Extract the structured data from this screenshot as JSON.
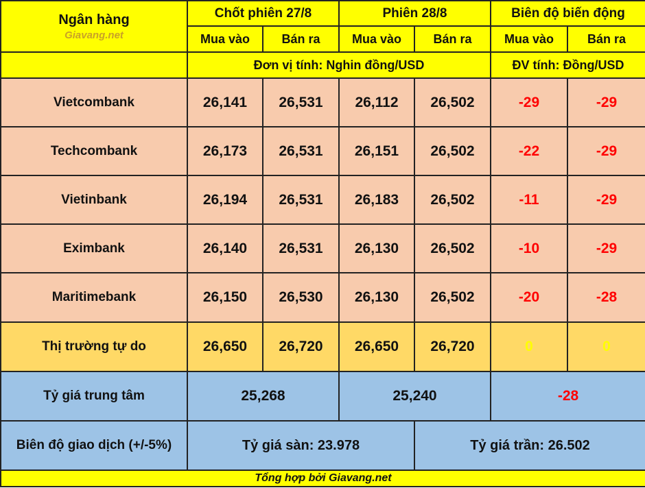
{
  "header": {
    "bank_label": "Ngân hàng",
    "brand": "Giavang.net",
    "period1": "Chốt phiên 27/8",
    "period2": "Phiên 28/8",
    "change": "Biên độ biến động",
    "buy": "Mua vào",
    "sell": "Bán ra",
    "unit1": "Đơn vị tính: Nghin đồng/USD",
    "unit2": "ĐV tính: Đồng/USD"
  },
  "rows": [
    {
      "bank": "Vietcombank",
      "buy1": "26,141",
      "sell1": "26,531",
      "buy2": "26,112",
      "sell2": "26,502",
      "dbuy": "-29",
      "dsell": "-29"
    },
    {
      "bank": "Techcombank",
      "buy1": "26,173",
      "sell1": "26,531",
      "buy2": "26,151",
      "sell2": "26,502",
      "dbuy": "-22",
      "dsell": "-29"
    },
    {
      "bank": "Vietinbank",
      "buy1": "26,194",
      "sell1": "26,531",
      "buy2": "26,183",
      "sell2": "26,502",
      "dbuy": "-11",
      "dsell": "-29"
    },
    {
      "bank": "Eximbank",
      "buy1": "26,140",
      "sell1": "26,531",
      "buy2": "26,130",
      "sell2": "26,502",
      "dbuy": "-10",
      "dsell": "-29"
    },
    {
      "bank": "Maritimebank",
      "buy1": "26,150",
      "sell1": "26,530",
      "buy2": "26,130",
      "sell2": "26,502",
      "dbuy": "-20",
      "dsell": "-28"
    }
  ],
  "free_market": {
    "label": "Thị trường tự do",
    "buy1": "26,650",
    "sell1": "26,720",
    "buy2": "26,650",
    "sell2": "26,720",
    "dbuy": "0",
    "dsell": "0"
  },
  "central": {
    "label": "Tỷ giá trung tâm",
    "v1": "25,268",
    "v2": "25,240",
    "delta": "-28"
  },
  "band": {
    "label": "Biên độ giao dịch (+/-5%)",
    "floor": "Tỷ giá sàn: 23.978",
    "ceiling": "Tỷ giá trần: 26.502"
  },
  "footer": "Tổng hợp bởi Giavang.net",
  "colors": {
    "header": "#ffff00",
    "bank_rows": "#f8cbad",
    "free_market": "#ffd966",
    "central": "#9dc3e6",
    "negative": "#ff0000"
  }
}
